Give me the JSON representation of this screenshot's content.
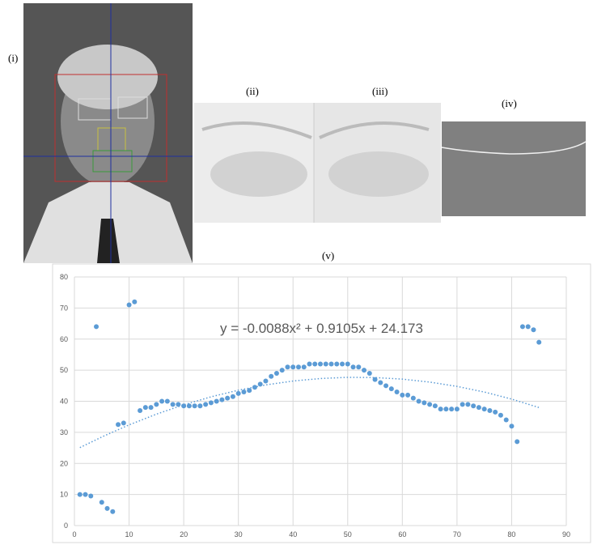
{
  "panel_labels": [
    "(i)",
    "(ii)",
    "(iii)",
    "(iv)",
    "(v)"
  ],
  "chart_data": {
    "type": "scatter",
    "annotation": "y = -0.0088x² + 0.9105x + 24.173",
    "color": "#5b9bd5",
    "grid": true,
    "xlim": [
      0,
      90
    ],
    "xticks": [
      0,
      10,
      20,
      30,
      40,
      50,
      60,
      70,
      80,
      90
    ],
    "ylim": [
      0,
      80
    ],
    "yticks": [
      0,
      10,
      20,
      30,
      40,
      50,
      60,
      70,
      80
    ],
    "x": [
      1,
      2,
      3,
      4,
      5,
      6,
      7,
      8,
      9,
      10,
      11,
      12,
      13,
      14,
      15,
      16,
      17,
      18,
      19,
      20,
      21,
      22,
      23,
      24,
      25,
      26,
      27,
      28,
      29,
      30,
      31,
      32,
      33,
      34,
      35,
      36,
      37,
      38,
      39,
      40,
      41,
      42,
      43,
      44,
      45,
      46,
      47,
      48,
      49,
      50,
      51,
      52,
      53,
      54,
      55,
      56,
      57,
      58,
      59,
      60,
      61,
      62,
      63,
      64,
      65,
      66,
      67,
      68,
      69,
      70,
      71,
      72,
      73,
      74,
      75,
      76,
      77,
      78,
      79,
      80,
      81,
      82,
      83,
      84,
      85
    ],
    "values": [
      10,
      10,
      9.5,
      64,
      7.5,
      5.5,
      4.5,
      32.5,
      33,
      71,
      72,
      37,
      38,
      38,
      39,
      40,
      40,
      39,
      39,
      38.5,
      38.5,
      38.5,
      38.5,
      39,
      39.5,
      40,
      40.5,
      41,
      41.5,
      42.5,
      43,
      43.5,
      44.5,
      45.5,
      46.5,
      48,
      49,
      50,
      51,
      51,
      51,
      51,
      52,
      52,
      52,
      52,
      52,
      52,
      52,
      52,
      51,
      51,
      50,
      49,
      47,
      46,
      45,
      44,
      43,
      42,
      42,
      41,
      40,
      39.5,
      39,
      38.5,
      37.5,
      37.5,
      37.5,
      37.5,
      39,
      39,
      38.5,
      38,
      37.5,
      37,
      36.5,
      35.5,
      34,
      32,
      27,
      64,
      64,
      63,
      59
    ],
    "trendline": {
      "x": [
        1,
        5,
        10,
        15,
        20,
        25,
        30,
        35,
        40,
        45,
        50,
        55,
        60,
        65,
        70,
        75,
        80,
        85
      ],
      "values": [
        25.08,
        28.5,
        32.4,
        35.85,
        38.86,
        41.43,
        43.57,
        45.26,
        46.51,
        47.32,
        47.7,
        47.63,
        47.12,
        46.17,
        44.79,
        42.96,
        40.69,
        37.98
      ]
    }
  }
}
